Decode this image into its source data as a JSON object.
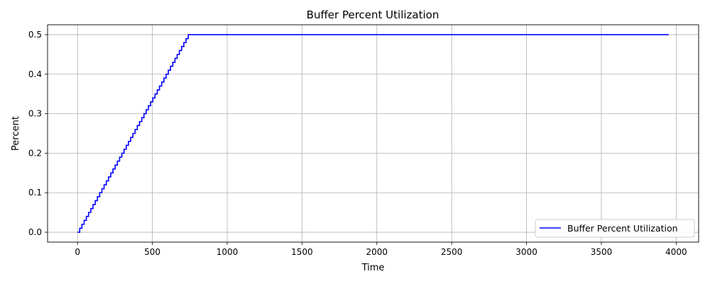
{
  "chart_data": {
    "type": "line",
    "title": "Buffer Percent Utilization",
    "xlabel": "Time",
    "ylabel": "Percent",
    "xlim": [
      -200,
      4150
    ],
    "ylim": [
      -0.025,
      0.525
    ],
    "x_ticks": [
      0,
      500,
      1000,
      1500,
      2000,
      2500,
      3000,
      3500,
      4000
    ],
    "x_tick_labels": [
      "0",
      "500",
      "1000",
      "1500",
      "2000",
      "2500",
      "3000",
      "3500",
      "4000"
    ],
    "y_ticks": [
      0.0,
      0.1,
      0.2,
      0.3,
      0.4,
      0.5
    ],
    "y_tick_labels": [
      "0.0",
      "0.1",
      "0.2",
      "0.3",
      "0.4",
      "0.5"
    ],
    "grid": true,
    "legend_position": "bottom-right",
    "series": [
      {
        "name": "Buffer Percent Utilization",
        "color": "#0000ff",
        "step": true,
        "x": [
          0,
          740,
          3950
        ],
        "y": [
          0.0,
          0.5,
          0.5
        ],
        "step_size": 0.01
      }
    ]
  }
}
